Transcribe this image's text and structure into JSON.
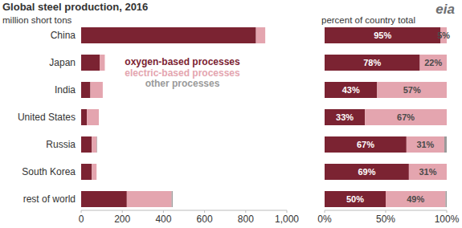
{
  "chart_data": [
    {
      "type": "bar",
      "title": "Global steel production, 2016",
      "subtitle": "million short tons",
      "orientation": "horizontal",
      "stacked": true,
      "grid": false,
      "legend": "top",
      "annotations": [
        "eia"
      ],
      "categories": [
        "China",
        "Japan",
        "India",
        "United States",
        "Russia",
        "South Korea",
        "rest of world"
      ],
      "series": [
        {
          "name": "oxygen-based processes",
          "color": "#7b2332",
          "values": [
            850,
            90,
            45,
            28,
            52,
            52,
            222
          ]
        },
        {
          "name": "electric-based processes",
          "color": "#e4a5af",
          "values": [
            45,
            25,
            60,
            58,
            24,
            23,
            218
          ]
        },
        {
          "name": "other processes",
          "color": "#9a9a9a",
          "values": [
            0,
            0,
            0,
            0,
            2,
            0,
            5
          ]
        }
      ],
      "xlim": [
        0,
        1000
      ],
      "xticks": [
        0,
        200,
        400,
        600,
        800,
        {
          "value": 1000,
          "label": "1,000"
        }
      ]
    },
    {
      "type": "bar",
      "subtitle": "percent of country total",
      "orientation": "horizontal",
      "stacked": true,
      "grid": false,
      "data_labels": true,
      "tick_labels": "x",
      "categories": [
        null,
        null,
        null,
        null,
        null,
        null,
        null
      ],
      "series": [
        {
          "color": "#7b2332",
          "values": [
            95,
            78,
            43,
            33,
            67,
            69,
            50
          ],
          "value_labels": [
            "95%",
            "78%",
            "43%",
            "33%",
            "67%",
            "69%",
            "50%"
          ]
        },
        {
          "color": "#e4a5af",
          "values": [
            5,
            22,
            57,
            67,
            31,
            31,
            49
          ],
          "value_labels": [
            "5%",
            "22%",
            "57%",
            "67%",
            "31%",
            "31%",
            "49%"
          ]
        },
        {
          "color": "#9a9a9a",
          "values": [
            0,
            0,
            0,
            0,
            2,
            0,
            1
          ],
          "value_labels": [
            null,
            null,
            null,
            null,
            null,
            null,
            null
          ]
        }
      ],
      "xlim": [
        0,
        100
      ],
      "xticks": [
        {
          "value": 0,
          "label": "0%"
        },
        {
          "value": 50,
          "label": "50%"
        },
        {
          "value": 100,
          "label": "100%"
        }
      ]
    }
  ]
}
